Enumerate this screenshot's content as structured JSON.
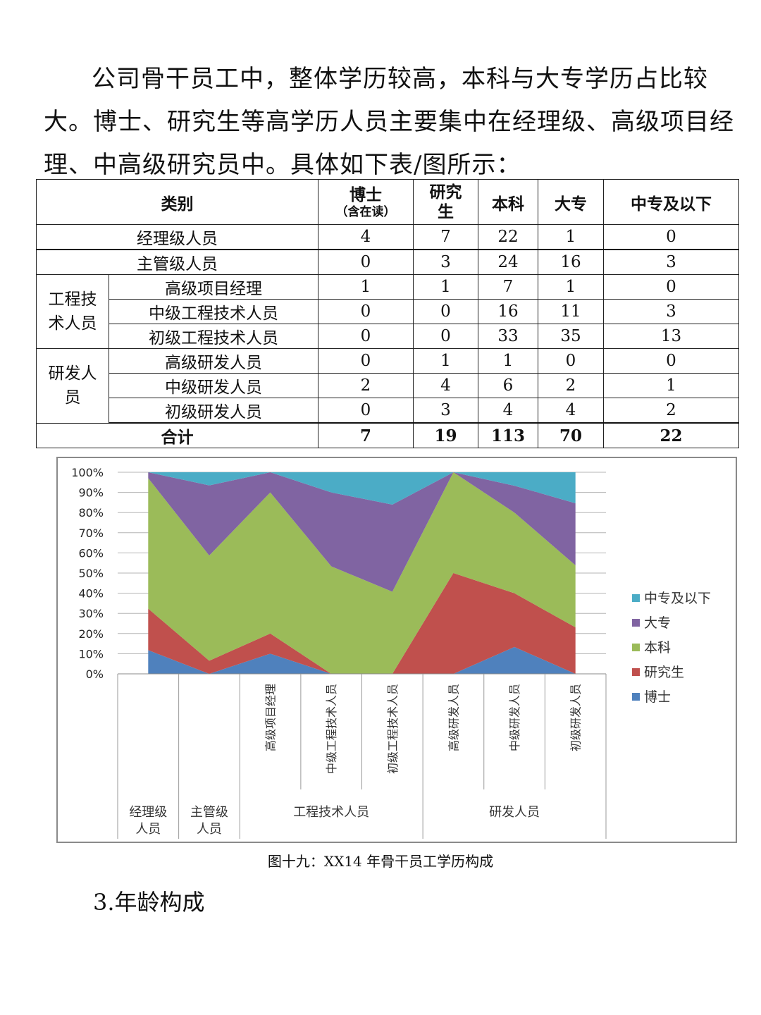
{
  "paragraph": "公司骨干员工中，整体学历较高，本科与大专学历占比较大。博士、研究生等高学历人员主要集中在经理级、高级项目经理、中高级研究员中。具体如下表/图所示：",
  "table": {
    "headers": {
      "category": "类别",
      "phd_line1": "博士",
      "phd_line2": "（含在读）",
      "master_line1": "研究",
      "master_line2": "生",
      "bachelor": "本科",
      "college": "大专",
      "secondary": "中专及以下"
    },
    "groups": {
      "engineering_line1": "工程技",
      "engineering_line2": "术人员",
      "rd_line1": "研发人",
      "rd_line2": "员"
    },
    "rows": [
      {
        "label": "经理级人员",
        "values": [
          "4",
          "7",
          "22",
          "1",
          "0"
        ]
      },
      {
        "label": "主管级人员",
        "values": [
          "0",
          "3",
          "24",
          "16",
          "3"
        ]
      },
      {
        "label": "高级项目经理",
        "values": [
          "1",
          "1",
          "7",
          "1",
          "0"
        ]
      },
      {
        "label": "中级工程技术人员",
        "values": [
          "0",
          "0",
          "16",
          "11",
          "3"
        ]
      },
      {
        "label": "初级工程技术人员",
        "values": [
          "0",
          "0",
          "33",
          "35",
          "13"
        ]
      },
      {
        "label": "高级研发人员",
        "values": [
          "0",
          "1",
          "1",
          "0",
          "0"
        ]
      },
      {
        "label": "中级研发人员",
        "values": [
          "2",
          "4",
          "6",
          "2",
          "1"
        ]
      },
      {
        "label": "初级研发人员",
        "values": [
          "0",
          "3",
          "4",
          "4",
          "2"
        ]
      }
    ],
    "total": {
      "label": "合计",
      "values": [
        "7",
        "19",
        "113",
        "70",
        "22"
      ]
    }
  },
  "chart_data": {
    "type": "area",
    "stacked": "percent",
    "categories": [
      "高级项目经理",
      "中级工程技术人员",
      "初级工程技术人员",
      "高级研发人员",
      "中级研发人员",
      "初级研发人员"
    ],
    "x": [
      "经理级人员",
      "主管级人员",
      "高级项目经理",
      "中级工程技术人员",
      "初级工程技术人员",
      "高级研发人员",
      "中级研发人员",
      "初级研发人员"
    ],
    "group_labels": [
      {
        "label": "经理级人员",
        "line1": "经理级",
        "line2": "人员",
        "from": 0,
        "to": 0
      },
      {
        "label": "主管级人员",
        "line1": "主管级",
        "line2": "人员",
        "from": 1,
        "to": 1
      },
      {
        "label": "工程技术人员",
        "line1": "工程技术人员",
        "line2": "",
        "from": 2,
        "to": 4
      },
      {
        "label": "研发人员",
        "line1": "研发人员",
        "line2": "",
        "from": 5,
        "to": 7
      }
    ],
    "series": [
      {
        "name": "博士",
        "color": "#4f81bd",
        "values": [
          4,
          0,
          1,
          0,
          0,
          0,
          2,
          0
        ]
      },
      {
        "name": "研究生",
        "color": "#c0504d",
        "values": [
          7,
          3,
          1,
          0,
          0,
          1,
          4,
          3
        ]
      },
      {
        "name": "本科",
        "color": "#9bbb59",
        "values": [
          22,
          24,
          7,
          16,
          33,
          1,
          6,
          4
        ]
      },
      {
        "name": "大专",
        "color": "#8064a2",
        "values": [
          1,
          16,
          1,
          11,
          35,
          0,
          2,
          4
        ]
      },
      {
        "name": "中专及以下",
        "color": "#4bacc6",
        "values": [
          0,
          3,
          0,
          3,
          13,
          0,
          1,
          2
        ]
      }
    ],
    "yticks": [
      "0%",
      "10%",
      "20%",
      "30%",
      "40%",
      "50%",
      "60%",
      "70%",
      "80%",
      "90%",
      "100%"
    ],
    "ylim": [
      0,
      100
    ],
    "grid": true,
    "legend": "right"
  },
  "caption": "图十九：XX14 年骨干员工学历构成",
  "section_heading": "3.年龄构成"
}
